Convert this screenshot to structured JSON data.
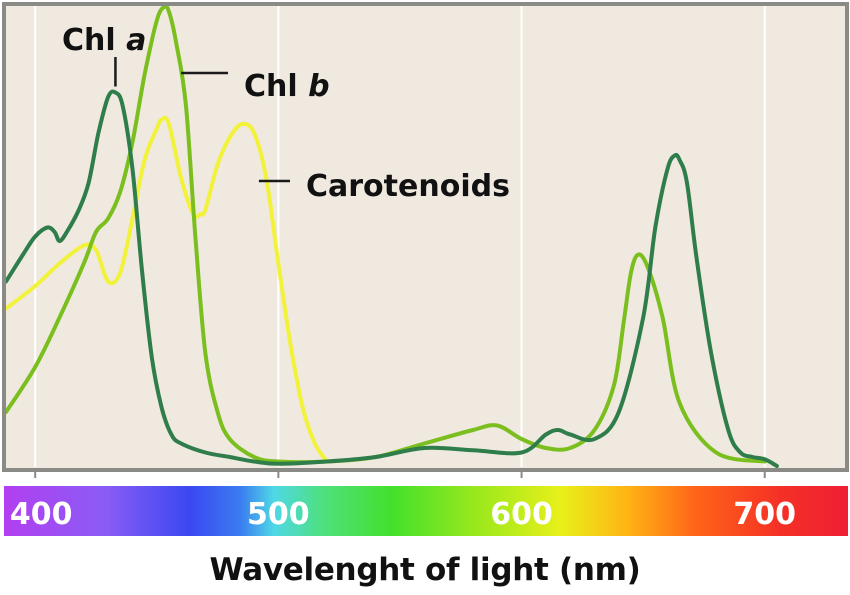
{
  "chart_data": {
    "type": "line",
    "xlabel": "Wavelenght of light (nm)",
    "xlim": [
      388,
      733
    ],
    "ylim": [
      0,
      1
    ],
    "grid": "vertical",
    "x_ticks": [
      400,
      500,
      600,
      700
    ],
    "x_tick_labels": [
      "400",
      "500",
      "600",
      "700"
    ],
    "annotations": {
      "chl_a": {
        "prefix": "Chl",
        "italic": "a"
      },
      "chl_b": {
        "prefix": "Chl",
        "italic": "b"
      },
      "carotenoids": {
        "text": "Carotenoids"
      }
    },
    "series": [
      {
        "name": "Chl a",
        "color": "#2e7d4a",
        "x": [
          388,
          395,
          400,
          405,
          408,
          410,
          413,
          418,
          422,
          426,
          430,
          433,
          436,
          440,
          444,
          448,
          452,
          456,
          460,
          470,
          480,
          490,
          500,
          520,
          540,
          560,
          580,
          600,
          610,
          615,
          620,
          630,
          640,
          650,
          655,
          660,
          663,
          665,
          668,
          672,
          678,
          685,
          690,
          695,
          700,
          705
        ],
        "y": [
          0.41,
          0.47,
          0.51,
          0.53,
          0.52,
          0.5,
          0.52,
          0.57,
          0.63,
          0.74,
          0.82,
          0.83,
          0.8,
          0.66,
          0.43,
          0.24,
          0.13,
          0.07,
          0.05,
          0.03,
          0.02,
          0.01,
          0.005,
          0.01,
          0.02,
          0.04,
          0.035,
          0.03,
          0.07,
          0.08,
          0.07,
          0.06,
          0.12,
          0.33,
          0.53,
          0.66,
          0.69,
          0.68,
          0.63,
          0.46,
          0.25,
          0.08,
          0.03,
          0.02,
          0.015,
          0.0
        ]
      },
      {
        "name": "Chl b",
        "color": "#7bbf1e",
        "x": [
          388,
          400,
          410,
          420,
          425,
          430,
          435,
          440,
          445,
          450,
          453,
          455,
          458,
          462,
          466,
          470,
          475,
          480,
          490,
          500,
          520,
          540,
          560,
          580,
          590,
          600,
          610,
          620,
          630,
          638,
          642,
          645,
          648,
          652,
          658,
          665,
          680,
          700
        ],
        "y": [
          0.12,
          0.22,
          0.33,
          0.45,
          0.52,
          0.55,
          0.61,
          0.72,
          0.87,
          0.99,
          1.02,
          1.01,
          0.94,
          0.8,
          0.5,
          0.25,
          0.12,
          0.06,
          0.02,
          0.01,
          0.01,
          0.02,
          0.05,
          0.08,
          0.09,
          0.06,
          0.04,
          0.04,
          0.08,
          0.18,
          0.32,
          0.43,
          0.47,
          0.44,
          0.33,
          0.14,
          0.03,
          0.01
        ]
      },
      {
        "name": "Carotenoids",
        "color": "#f2f23a",
        "x": [
          388,
          400,
          410,
          420,
          425,
          430,
          435,
          440,
          445,
          450,
          452,
          455,
          460,
          465,
          468,
          470,
          475,
          480,
          485,
          490,
          495,
          500,
          505,
          510,
          515,
          520
        ],
        "y": [
          0.35,
          0.4,
          0.45,
          0.49,
          0.48,
          0.41,
          0.43,
          0.55,
          0.68,
          0.75,
          0.77,
          0.76,
          0.64,
          0.56,
          0.56,
          0.57,
          0.67,
          0.73,
          0.76,
          0.74,
          0.64,
          0.45,
          0.27,
          0.13,
          0.05,
          0.01
        ]
      }
    ]
  }
}
